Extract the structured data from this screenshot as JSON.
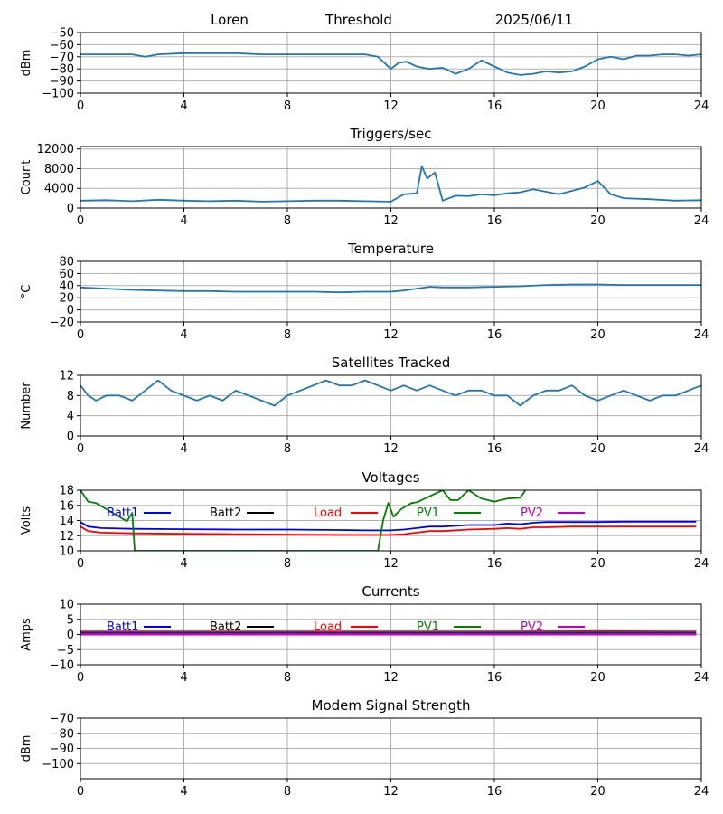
{
  "header": {
    "station": "Loren",
    "mode": "Threshold",
    "date": "2025/06/11"
  },
  "chart_data": [
    {
      "id": "threshold",
      "type": "line",
      "title": "",
      "ylabel": "dBm",
      "xlim": [
        0,
        24
      ],
      "ylim": [
        -100,
        -50
      ],
      "xticks": [
        "0",
        "4",
        "8",
        "12",
        "16",
        "20",
        "24"
      ],
      "yticks": [
        "−50",
        "−60",
        "−70",
        "−80",
        "−90",
        "−100"
      ],
      "ytick_values": [
        -50,
        -60,
        -70,
        -80,
        -90,
        -100
      ],
      "grid": true,
      "series": [
        {
          "color": "#1f77b4",
          "x": [
            0,
            1,
            2,
            2.5,
            3,
            4,
            5,
            6,
            7,
            8,
            9,
            10,
            11,
            11.5,
            12,
            12.3,
            12.6,
            13,
            13.5,
            14,
            14.5,
            15,
            15.5,
            16,
            16.5,
            17,
            17.5,
            18,
            18.5,
            19,
            19.5,
            20,
            20.5,
            21,
            21.5,
            22,
            22.5,
            23,
            23.5,
            24
          ],
          "y": [
            -68,
            -68,
            -68,
            -70,
            -68,
            -67,
            -67,
            -67,
            -68,
            -68,
            -68,
            -68,
            -68,
            -70,
            -80,
            -75,
            -74,
            -78,
            -80,
            -79,
            -84,
            -80,
            -73,
            -78,
            -83,
            -85,
            -84,
            -82,
            -83,
            -82,
            -78,
            -72,
            -70,
            -72,
            -69,
            -69,
            -68,
            -68,
            -69,
            -68
          ]
        }
      ]
    },
    {
      "id": "triggers",
      "type": "line",
      "title": "Triggers/sec",
      "ylabel": "Count",
      "xlim": [
        0,
        24
      ],
      "ylim": [
        0,
        12500
      ],
      "xticks": [
        "0",
        "4",
        "8",
        "12",
        "16",
        "20",
        "24"
      ],
      "yticks": [
        "0",
        "4000",
        "8000",
        "12000"
      ],
      "ytick_values": [
        0,
        4000,
        8000,
        12000
      ],
      "grid": true,
      "series": [
        {
          "color": "#1f77b4",
          "x": [
            0,
            1,
            2,
            3,
            4,
            5,
            6,
            7,
            8,
            9,
            10,
            11,
            12,
            12.5,
            13,
            13.2,
            13.4,
            13.7,
            14,
            14.5,
            15,
            15.5,
            16,
            16.5,
            17,
            17.5,
            18,
            18.5,
            19,
            19.5,
            20,
            20.5,
            21,
            22,
            23,
            24
          ],
          "y": [
            1500,
            1600,
            1400,
            1700,
            1500,
            1400,
            1500,
            1300,
            1400,
            1500,
            1500,
            1400,
            1300,
            2800,
            3000,
            8500,
            6000,
            7200,
            1500,
            2500,
            2400,
            2800,
            2600,
            3000,
            3200,
            3800,
            3300,
            2800,
            3500,
            4200,
            5500,
            2800,
            2000,
            1800,
            1500,
            1600
          ]
        }
      ]
    },
    {
      "id": "temperature",
      "type": "line",
      "title": "Temperature",
      "ylabel": "°C",
      "xlim": [
        0,
        24
      ],
      "ylim": [
        -20,
        80
      ],
      "xticks": [
        "0",
        "4",
        "8",
        "12",
        "16",
        "20",
        "24"
      ],
      "yticks": [
        "80",
        "60",
        "40",
        "20",
        "0",
        "−20"
      ],
      "ytick_values": [
        80,
        60,
        40,
        20,
        0,
        -20
      ],
      "grid": true,
      "series": [
        {
          "color": "#1f77b4",
          "x": [
            0,
            1,
            2,
            3,
            4,
            5,
            6,
            7,
            8,
            9,
            10,
            11,
            12,
            12.5,
            13,
            13.5,
            14,
            15,
            16,
            17,
            18,
            19,
            20,
            21,
            22,
            23,
            24
          ],
          "y": [
            37,
            35,
            33,
            32,
            31,
            31,
            30,
            30,
            30,
            30,
            29,
            30,
            30,
            32,
            35,
            38,
            37,
            37,
            38,
            39,
            41,
            42,
            42,
            41,
            41,
            41,
            41
          ]
        }
      ]
    },
    {
      "id": "satellites",
      "type": "line",
      "title": "Satellites Tracked",
      "ylabel": "Number",
      "xlim": [
        0,
        24
      ],
      "ylim": [
        0,
        12
      ],
      "xticks": [
        "0",
        "4",
        "8",
        "12",
        "16",
        "20",
        "24"
      ],
      "yticks": [
        "0",
        "4",
        "8",
        "12"
      ],
      "ytick_values": [
        0,
        4,
        8,
        12
      ],
      "grid": true,
      "series": [
        {
          "color": "#1f77b4",
          "x": [
            0,
            0.3,
            0.6,
            1,
            1.5,
            2,
            2.5,
            3,
            3.5,
            4,
            4.5,
            5,
            5.5,
            6,
            6.5,
            7,
            7.5,
            8,
            8.5,
            9,
            9.5,
            10,
            10.5,
            11,
            11.5,
            12,
            12.5,
            13,
            13.5,
            14,
            14.5,
            15,
            15.5,
            16,
            16.5,
            17,
            17.5,
            18,
            18.5,
            19,
            19.5,
            20,
            20.5,
            21,
            21.5,
            22,
            22.5,
            23,
            23.5,
            24
          ],
          "y": [
            10,
            8,
            7,
            8,
            8,
            7,
            9,
            11,
            9,
            8,
            7,
            8,
            7,
            9,
            8,
            7,
            6,
            8,
            9,
            10,
            11,
            10,
            10,
            11,
            10,
            9,
            10,
            9,
            10,
            9,
            8,
            9,
            9,
            8,
            8,
            6,
            8,
            9,
            9,
            10,
            8,
            7,
            8,
            9,
            8,
            7,
            8,
            8,
            9,
            10
          ]
        }
      ]
    },
    {
      "id": "voltages",
      "type": "line",
      "title": "Voltages",
      "ylabel": "Volts",
      "xlim": [
        0,
        24
      ],
      "ylim": [
        10,
        18
      ],
      "xticks": [
        "0",
        "4",
        "8",
        "12",
        "16",
        "20",
        "24"
      ],
      "yticks": [
        "10",
        "12",
        "14",
        "16",
        "18"
      ],
      "ytick_values": [
        10,
        12,
        14,
        16,
        18
      ],
      "grid": true,
      "legend": [
        {
          "label": "Batt1",
          "color": "#0000ff"
        },
        {
          "label": "Batt2",
          "color": "#000000"
        },
        {
          "label": "Load",
          "color": "#ff0000"
        },
        {
          "label": "PV1",
          "color": "#008000"
        },
        {
          "label": "PV2",
          "color": "#c000c0"
        }
      ],
      "series": [
        {
          "name": "Batt1",
          "color": "#0000ff",
          "x": [
            0,
            0.3,
            0.8,
            2,
            4,
            6,
            8,
            10,
            11,
            12,
            12.5,
            13,
            13.5,
            14,
            15,
            16,
            16.5,
            17,
            17.5,
            18,
            19,
            20,
            21,
            22,
            23,
            23.8
          ],
          "y": [
            13.8,
            13.2,
            13.0,
            12.9,
            12.85,
            12.8,
            12.8,
            12.75,
            12.7,
            12.7,
            12.8,
            13.0,
            13.2,
            13.2,
            13.4,
            13.4,
            13.6,
            13.5,
            13.7,
            13.8,
            13.8,
            13.8,
            13.85,
            13.85,
            13.85,
            13.85
          ]
        },
        {
          "name": "Load",
          "color": "#ff0000",
          "x": [
            0,
            0.3,
            0.8,
            2,
            4,
            6,
            8,
            10,
            11,
            12,
            12.5,
            13,
            13.5,
            14,
            15,
            16,
            16.5,
            17,
            17.5,
            18,
            19,
            20,
            21,
            22,
            23,
            23.8
          ],
          "y": [
            13.2,
            12.6,
            12.4,
            12.3,
            12.25,
            12.2,
            12.15,
            12.1,
            12.1,
            12.1,
            12.2,
            12.4,
            12.6,
            12.6,
            12.8,
            12.9,
            13.0,
            12.9,
            13.1,
            13.1,
            13.2,
            13.2,
            13.2,
            13.2,
            13.2,
            13.2
          ]
        },
        {
          "name": "PV1",
          "color": "#008000",
          "x": [
            0,
            0.3,
            0.6,
            1,
            1.5,
            1.8,
            2,
            2.1,
            11.5,
            11.7,
            11.9,
            12.1,
            12.4,
            12.8,
            13,
            13.5,
            14,
            14.3,
            14.6,
            15,
            15.5,
            16,
            16.5,
            17,
            17.2
          ],
          "y": [
            18,
            16.5,
            16.3,
            15.5,
            14.5,
            13.9,
            15.0,
            10,
            10,
            14.0,
            16.3,
            14.5,
            15.5,
            16.3,
            16.4,
            17.2,
            18.0,
            16.7,
            16.7,
            18.0,
            16.9,
            16.5,
            16.9,
            17.0,
            18.0
          ]
        }
      ]
    },
    {
      "id": "currents",
      "type": "line",
      "title": "Currents",
      "ylabel": "Amps",
      "xlim": [
        0,
        24
      ],
      "ylim": [
        -10,
        10
      ],
      "xticks": [
        "0",
        "4",
        "8",
        "12",
        "16",
        "20",
        "24"
      ],
      "yticks": [
        "10",
        "5",
        "0",
        "−5",
        "−10"
      ],
      "ytick_values": [
        10,
        5,
        0,
        -5,
        -10
      ],
      "grid": true,
      "legend": [
        {
          "label": "Batt1",
          "color": "#0000ff"
        },
        {
          "label": "Batt2",
          "color": "#000000"
        },
        {
          "label": "Load",
          "color": "#ff0000"
        },
        {
          "label": "PV1",
          "color": "#008000"
        },
        {
          "label": "PV2",
          "color": "#c000c0"
        }
      ],
      "series": [
        {
          "name": "Load",
          "color": "#ff0000",
          "x": [
            0,
            4,
            8,
            12,
            16,
            20,
            23.8
          ],
          "y": [
            0.9,
            0.9,
            0.9,
            0.9,
            0.9,
            1.0,
            0.9
          ]
        },
        {
          "name": "PV1",
          "color": "#008000",
          "x": [
            0,
            4,
            8,
            12,
            16,
            20,
            23.8
          ],
          "y": [
            0.5,
            0.5,
            0.5,
            0.5,
            0.6,
            0.6,
            0.5
          ]
        },
        {
          "name": "Batt1",
          "color": "#0000ff",
          "x": [
            0,
            4,
            8,
            12,
            16,
            20,
            23.8
          ],
          "y": [
            0.3,
            0.3,
            0.3,
            0.3,
            0.3,
            0.3,
            0.3
          ]
        },
        {
          "name": "PV2",
          "color": "#c000c0",
          "x": [
            0,
            4,
            8,
            12,
            16,
            20,
            23.8
          ],
          "y": [
            0.1,
            0.1,
            0.1,
            0.1,
            0.1,
            0.1,
            0.1
          ]
        }
      ]
    },
    {
      "id": "modem",
      "type": "line",
      "title": "Modem Signal Strength",
      "ylabel": "dBm",
      "xlim": [
        0,
        24
      ],
      "ylim": [
        -110,
        -70
      ],
      "xticks": [
        "0",
        "4",
        "8",
        "12",
        "16",
        "20",
        "24"
      ],
      "yticks": [
        "−70",
        "−80",
        "−90",
        "−100"
      ],
      "ytick_values": [
        -70,
        -80,
        -90,
        -100
      ],
      "grid": true,
      "series": []
    }
  ]
}
